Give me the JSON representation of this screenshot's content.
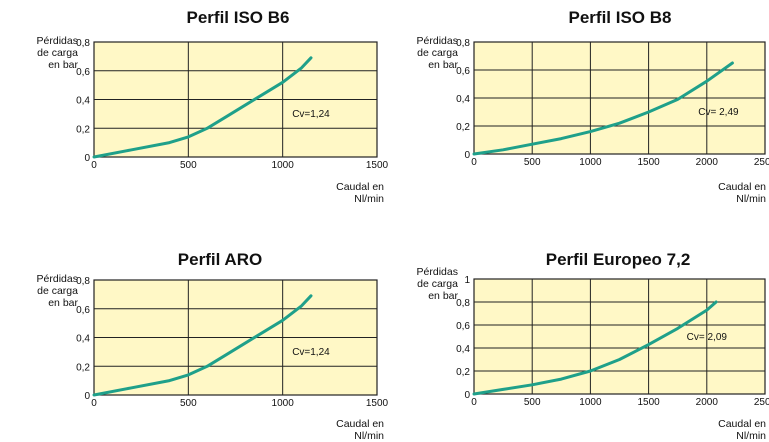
{
  "chart_data": [
    {
      "type": "line",
      "title": "Perfil ISO B6",
      "ylabel": [
        "Pérdidas",
        "de carga",
        "en bar"
      ],
      "xlabel": [
        "Caudal en",
        "Nl/min"
      ],
      "xlim": [
        0,
        1500
      ],
      "ylim": [
        0,
        0.8
      ],
      "xticks": [
        0,
        500,
        1000,
        1500
      ],
      "xtick_labels": [
        "0",
        "500",
        "1000",
        "1500"
      ],
      "yticks": [
        0,
        0.2,
        0.4,
        0.6,
        0.8
      ],
      "ytick_labels": [
        "0",
        "0,2",
        "0,4",
        "0,6",
        "0,8"
      ],
      "grid": true,
      "annotation": "Cv=1,24",
      "annotation_at": [
        1150,
        0.28
      ],
      "series": [
        {
          "x": [
            0,
            200,
            400,
            500,
            600,
            700,
            800,
            900,
            1000,
            1100,
            1150
          ],
          "y": [
            0,
            0.05,
            0.1,
            0.14,
            0.2,
            0.28,
            0.36,
            0.44,
            0.52,
            0.62,
            0.69
          ]
        }
      ]
    },
    {
      "type": "line",
      "title": "Perfil ISO B8",
      "ylabel": [
        "Pérdidas",
        "de carga",
        "en bar"
      ],
      "xlabel": [
        "Caudal en",
        "Nl/min"
      ],
      "xlim": [
        0,
        2500
      ],
      "ylim": [
        0,
        0.8
      ],
      "xticks": [
        0,
        500,
        1000,
        1500,
        2000,
        2500
      ],
      "xtick_labels": [
        "0",
        "500",
        "1000",
        "1500",
        "2000",
        "2500"
      ],
      "yticks": [
        0,
        0.2,
        0.4,
        0.6,
        0.8
      ],
      "ytick_labels": [
        "0",
        "0,2",
        "0,4",
        "0,6",
        "0,8"
      ],
      "grid": true,
      "annotation": "Cv= 2,49",
      "annotation_at": [
        2100,
        0.28
      ],
      "series": [
        {
          "x": [
            0,
            250,
            500,
            750,
            1000,
            1250,
            1500,
            1750,
            2000,
            2220
          ],
          "y": [
            0,
            0.03,
            0.07,
            0.11,
            0.16,
            0.22,
            0.3,
            0.39,
            0.52,
            0.65
          ]
        }
      ]
    },
    {
      "type": "line",
      "title": "Perfil ARO",
      "ylabel": [
        "Pérdidas",
        "de carga",
        "en bar"
      ],
      "xlabel": [
        "Caudal en",
        "Nl/min"
      ],
      "xlim": [
        0,
        1500
      ],
      "ylim": [
        0,
        0.8
      ],
      "xticks": [
        0,
        500,
        1000,
        1500
      ],
      "xtick_labels": [
        "0",
        "500",
        "1000",
        "1500"
      ],
      "yticks": [
        0,
        0.2,
        0.4,
        0.6,
        0.8
      ],
      "ytick_labels": [
        "0",
        "0,2",
        "0,4",
        "0,6",
        "0,8"
      ],
      "grid": true,
      "annotation": "Cv=1,24",
      "annotation_at": [
        1150,
        0.28
      ],
      "series": [
        {
          "x": [
            0,
            200,
            400,
            500,
            600,
            700,
            800,
            900,
            1000,
            1100,
            1150
          ],
          "y": [
            0,
            0.05,
            0.1,
            0.14,
            0.2,
            0.28,
            0.36,
            0.44,
            0.52,
            0.62,
            0.69
          ]
        }
      ]
    },
    {
      "type": "line",
      "title": "Perfil Europeo 7,2",
      "ylabel": [
        "Pérdidas",
        "de carga",
        "en bar"
      ],
      "xlabel": [
        "Caudal en",
        "Nl/min"
      ],
      "xlim": [
        0,
        2500
      ],
      "ylim": [
        0,
        1
      ],
      "xticks": [
        0,
        500,
        1000,
        1500,
        2000,
        2500
      ],
      "xtick_labels": [
        "0",
        "500",
        "1000",
        "1500",
        "2000",
        "2500"
      ],
      "yticks": [
        0,
        0.2,
        0.4,
        0.6,
        0.8,
        1
      ],
      "ytick_labels": [
        "0",
        "0,2",
        "0,4",
        "0,6",
        "0,8",
        "1"
      ],
      "grid": true,
      "annotation": "Cv= 2,09",
      "annotation_at": [
        2000,
        0.47
      ],
      "series": [
        {
          "x": [
            0,
            250,
            500,
            750,
            1000,
            1250,
            1500,
            1750,
            2000,
            2080
          ],
          "y": [
            0,
            0.04,
            0.08,
            0.13,
            0.2,
            0.3,
            0.43,
            0.57,
            0.73,
            0.8
          ]
        }
      ]
    }
  ],
  "colors": {
    "plot_fill": "#fff8c6",
    "curve": "#1fa08a",
    "grid": "#222222"
  }
}
